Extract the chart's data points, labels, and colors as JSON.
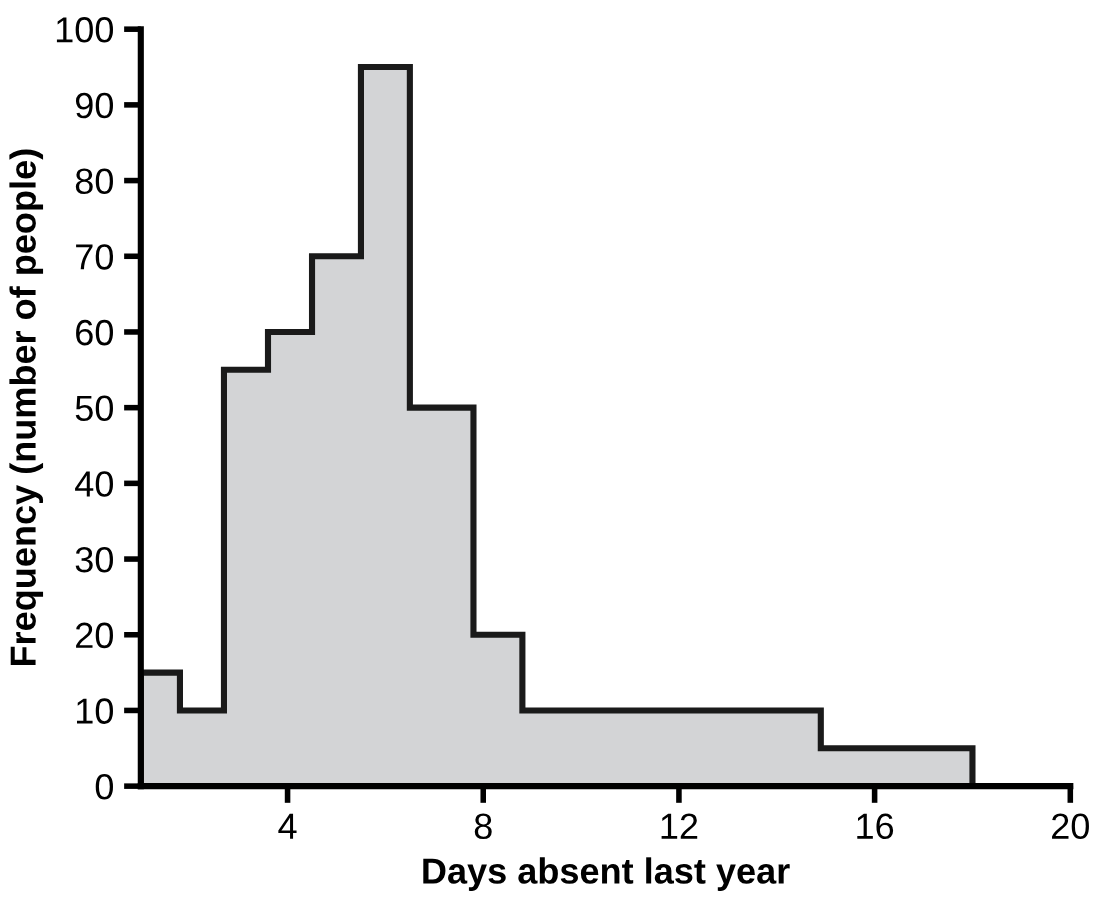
{
  "chart_data": {
    "type": "histogram",
    "xlabel": "Days absent last year",
    "ylabel": "Frequency (number of people)",
    "bins": [
      1,
      1.8,
      2.7,
      3.6,
      4.5,
      5.5,
      6.5,
      7.8,
      8.8,
      14.9,
      18
    ],
    "values": [
      15,
      10,
      55,
      60,
      70,
      95,
      50,
      20,
      10,
      5
    ],
    "color": "#d3d4d6",
    "xlim": [
      1,
      20
    ],
    "xticks": [
      4,
      8,
      12,
      16,
      20
    ],
    "ylim": [
      0,
      100
    ],
    "yticks": [
      0,
      10,
      20,
      30,
      40,
      50,
      60,
      70,
      80,
      90,
      100
    ],
    "grid": false
  }
}
